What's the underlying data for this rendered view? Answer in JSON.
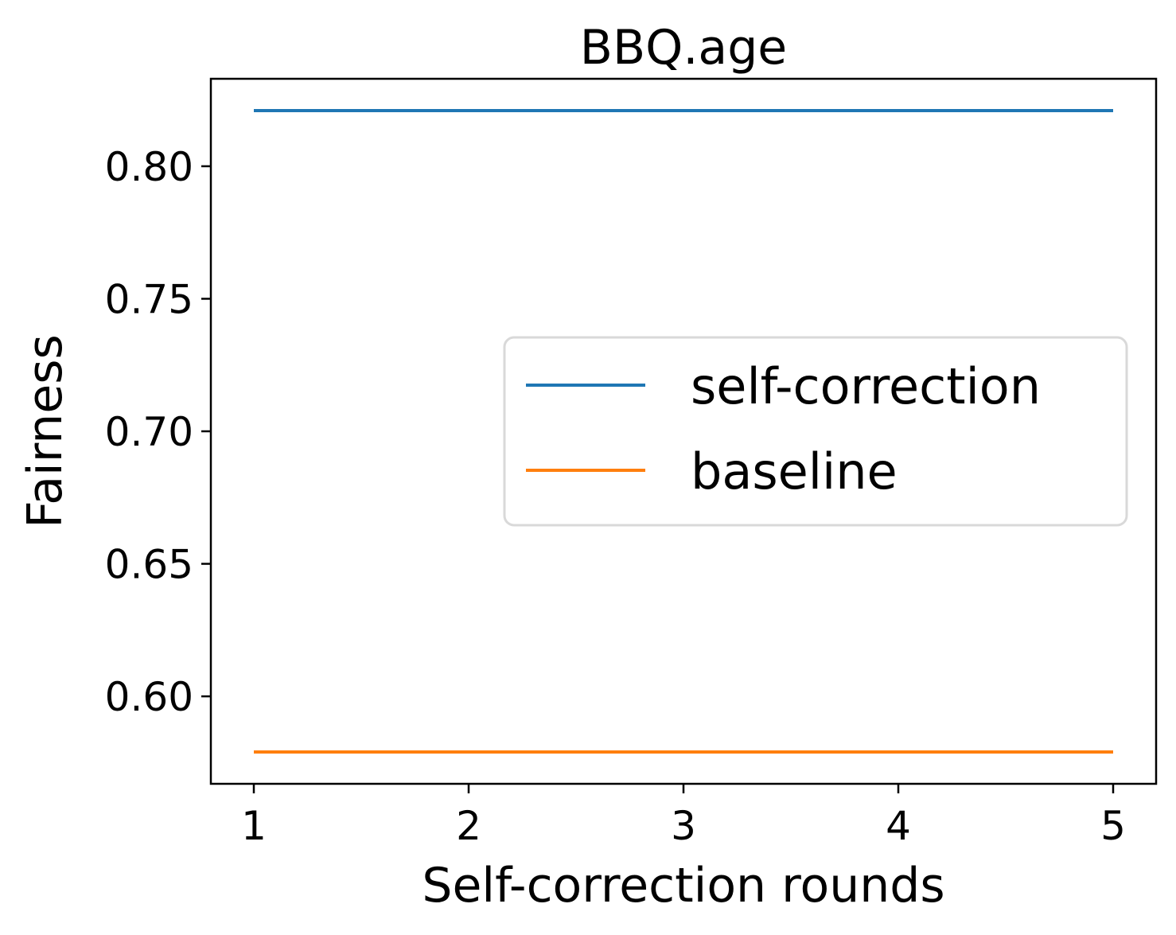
{
  "chart_data": {
    "type": "line",
    "title": "BBQ.age",
    "xlabel": "Self-correction rounds",
    "ylabel": "Fairness",
    "x": [
      1,
      2,
      3,
      4,
      5
    ],
    "xticks": [
      "1",
      "2",
      "3",
      "4",
      "5"
    ],
    "yticks": [
      "0.60",
      "0.65",
      "0.70",
      "0.75",
      "0.80"
    ],
    "xlim": [
      0.8,
      5.2
    ],
    "ylim": [
      0.567,
      0.833
    ],
    "grid": false,
    "legend_position": "center-right",
    "series": [
      {
        "name": "self-correction",
        "color": "#1f77b4",
        "values": [
          0.821,
          0.821,
          0.821,
          0.821,
          0.821
        ]
      },
      {
        "name": "baseline",
        "color": "#ff7f0e",
        "values": [
          0.579,
          0.579,
          0.579,
          0.579,
          0.579
        ]
      }
    ]
  }
}
